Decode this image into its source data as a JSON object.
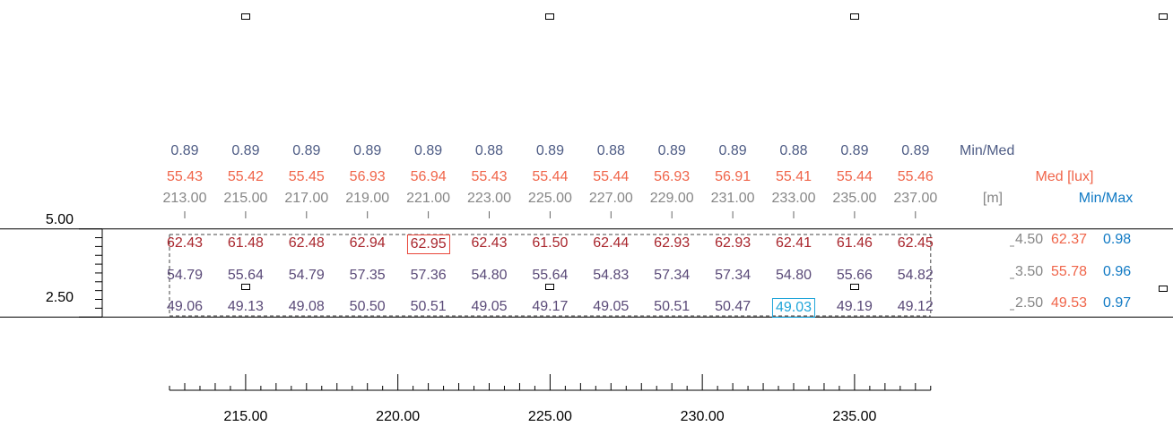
{
  "chart_data": {
    "type": "table",
    "x_positions_m": [
      213.0,
      215.0,
      217.0,
      219.0,
      221.0,
      223.0,
      225.0,
      227.0,
      229.0,
      231.0,
      233.0,
      235.0,
      237.0
    ],
    "column_headers": [
      "213.00",
      "215.00",
      "217.00",
      "219.00",
      "221.00",
      "223.00",
      "225.00",
      "227.00",
      "229.00",
      "231.00",
      "233.00",
      "235.00",
      "237.00"
    ],
    "min_over_avg": [
      "0.89",
      "0.89",
      "0.89",
      "0.89",
      "0.89",
      "0.88",
      "0.89",
      "0.88",
      "0.89",
      "0.89",
      "0.88",
      "0.89",
      "0.89"
    ],
    "avg_lux": [
      "55.43",
      "55.42",
      "55.45",
      "56.93",
      "56.94",
      "55.43",
      "55.44",
      "55.44",
      "56.93",
      "56.91",
      "55.41",
      "55.44",
      "55.46"
    ],
    "header_labels": {
      "min_avg": "Min/Med",
      "avg": "Med [lux]",
      "unit": "[m]",
      "min_max": "Min/Max"
    },
    "rows": [
      {
        "y": 4.5,
        "y_label": "4.50",
        "values": [
          "62.43",
          "61.48",
          "62.48",
          "62.94",
          "62.95",
          "62.43",
          "61.50",
          "62.44",
          "62.93",
          "62.93",
          "62.41",
          "61.46",
          "62.45"
        ],
        "row_avg": "62.37",
        "row_min_max": "0.98"
      },
      {
        "y": 3.5,
        "y_label": "3.50",
        "values": [
          "54.79",
          "55.64",
          "54.79",
          "57.35",
          "57.36",
          "54.80",
          "55.64",
          "54.83",
          "57.34",
          "57.34",
          "54.80",
          "55.66",
          "54.82"
        ],
        "row_avg": "55.78",
        "row_min_max": "0.96"
      },
      {
        "y": 2.5,
        "y_label": "2.50",
        "values": [
          "49.06",
          "49.13",
          "49.08",
          "50.50",
          "50.51",
          "49.05",
          "49.17",
          "49.05",
          "50.51",
          "50.47",
          "49.03",
          "49.19",
          "49.12"
        ],
        "row_avg": "49.53",
        "row_min_max": "0.97"
      }
    ],
    "max_cell": {
      "row": 0,
      "col": 4
    },
    "min_cell": {
      "row": 2,
      "col": 10
    },
    "y_axis": {
      "tick_labels": [
        "5.00",
        "2.50"
      ],
      "ticks": [
        5.0,
        2.5
      ],
      "range": [
        2.5,
        5.0
      ],
      "minor_step": 0.25
    },
    "x_axis": {
      "tick_labels": [
        "215.00",
        "220.00",
        "225.00",
        "230.00",
        "235.00"
      ],
      "ticks": [
        215.0,
        220.0,
        225.0,
        230.0,
        235.0
      ],
      "range": [
        212.5,
        237.5
      ],
      "minor_step": 1.0
    },
    "luminaire_x": [
      215.0,
      225.0,
      235.0
    ]
  },
  "colors": {
    "ratio": "#4e5c85",
    "average": "#f0654a",
    "header_gray": "#868686",
    "min_max_blue": "#0f79c4",
    "high_value": "#a9262d",
    "low_value": "#5a4a78",
    "max_box": "#e9473a",
    "min_box": "#1fa5d9"
  }
}
